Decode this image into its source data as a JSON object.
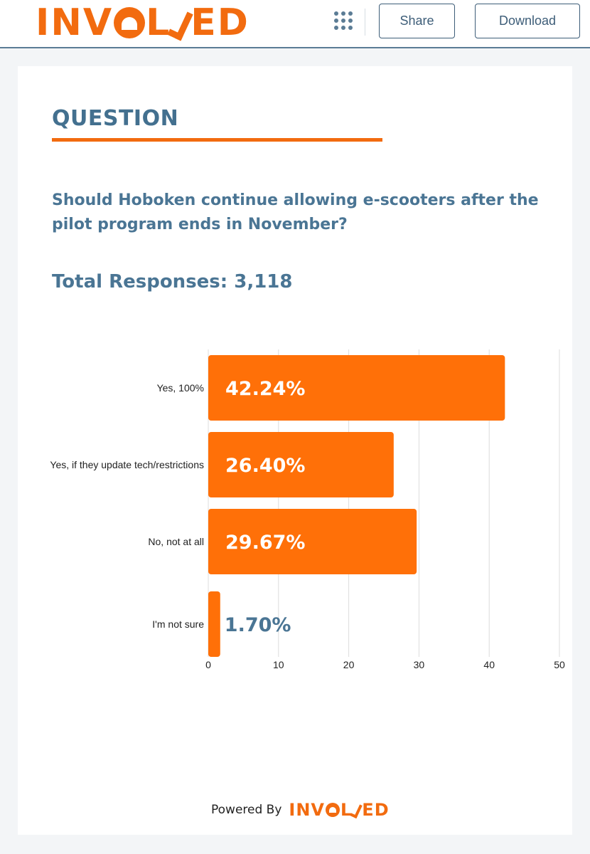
{
  "header": {
    "logo_left": "INV",
    "logo_mid": "L",
    "logo_right": "ED",
    "logo_icon": "capitol-dome-icon",
    "apps_icon": "apps-grid-icon",
    "share_label": "Share",
    "download_label": "Download"
  },
  "card": {
    "heading": "QUESTION",
    "question": "Should Hoboken continue allowing e-scooters after the pilot program ends in November?",
    "total_responses": "Total Responses: 3,118"
  },
  "footer": {
    "powered_by": "Powered By",
    "logo_left": "INV",
    "logo_mid": "L",
    "logo_right": "ED"
  },
  "colors": {
    "accent": "#f26b0f",
    "heading": "#43708f",
    "bar": "#ff7008",
    "bar_label_inside": "#ffffff",
    "bar_label_outside": "#4a7594",
    "grid": "#dcdcdc"
  },
  "chart_data": {
    "type": "bar",
    "orientation": "horizontal",
    "categories": [
      "Yes, 100%",
      "Yes, if they update tech/restrictions",
      "No, not at all",
      "I'm not sure"
    ],
    "values": [
      42.24,
      26.4,
      29.67,
      1.7
    ],
    "data_labels": [
      "42.24%",
      "26.40%",
      "29.67%",
      "1.70%"
    ],
    "xlim": [
      0,
      50
    ],
    "xticks": [
      0,
      10,
      20,
      30,
      40,
      50
    ],
    "grid": true
  }
}
